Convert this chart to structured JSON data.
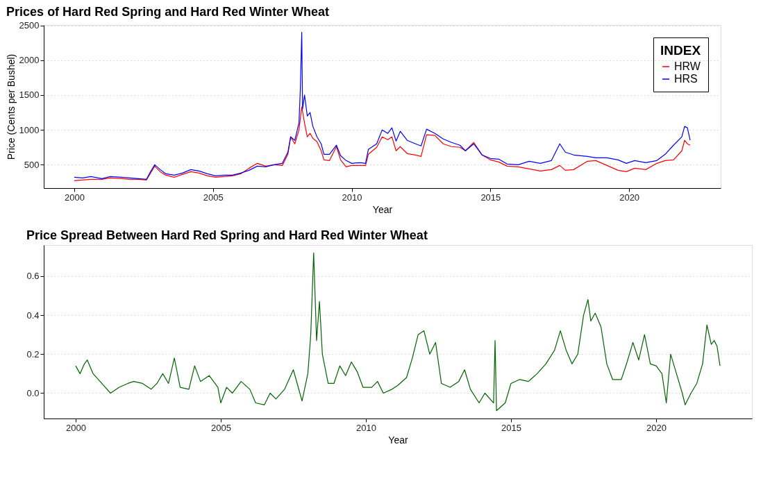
{
  "chart_data": [
    {
      "type": "line",
      "title": "Prices of Hard Red Spring and Hard Red Winter Wheat",
      "xlabel": "Year",
      "ylabel": "Price (Cents per Bushel)",
      "legend_title": "INDEX",
      "legend": "top right",
      "grid": "y",
      "xlim": [
        1998.9,
        2023.3
      ],
      "xticks": [
        2000,
        2005,
        2010,
        2015,
        2020
      ],
      "ylim": [
        165,
        2505
      ],
      "yticks": [
        500,
        1000,
        1500,
        2000,
        2500
      ],
      "series": [
        {
          "name": "HRW",
          "color": "#ff0000",
          "x": [
            2000.0,
            2000.3,
            2000.6,
            2001.0,
            2001.3,
            2001.7,
            2002.0,
            2002.3,
            2002.6,
            2002.75,
            2002.9,
            2003.1,
            2003.3,
            2003.6,
            2003.9,
            2004.2,
            2004.5,
            2004.8,
            2005.1,
            2005.4,
            2005.7,
            2006.0,
            2006.3,
            2006.6,
            2006.9,
            2007.2,
            2007.5,
            2007.7,
            2007.8,
            2007.95,
            2008.1,
            2008.2,
            2008.3,
            2008.4,
            2008.5,
            2008.6,
            2008.75,
            2008.9,
            2009.0,
            2009.2,
            2009.45,
            2009.6,
            2009.8,
            2010.0,
            2010.3,
            2010.5,
            2010.6,
            2010.9,
            2011.1,
            2011.3,
            2011.45,
            2011.6,
            2011.75,
            2012.0,
            2012.3,
            2012.5,
            2012.7,
            2013.0,
            2013.3,
            2013.6,
            2013.9,
            2014.1,
            2014.4,
            2014.7,
            2015.0,
            2015.3,
            2015.6,
            2016.0,
            2016.4,
            2016.8,
            2017.2,
            2017.5,
            2017.7,
            2018.0,
            2018.5,
            2018.8,
            2019.2,
            2019.6,
            2019.9,
            2020.2,
            2020.6,
            2021.0,
            2021.3,
            2021.6,
            2021.9,
            2022.0,
            2022.1,
            2022.2
          ],
          "values": [
            270,
            280,
            290,
            290,
            310,
            300,
            290,
            290,
            280,
            380,
            480,
            400,
            350,
            320,
            360,
            400,
            380,
            340,
            320,
            330,
            340,
            370,
            450,
            520,
            480,
            500,
            490,
            650,
            900,
            800,
            1000,
            1330,
            1100,
            900,
            950,
            880,
            830,
            700,
            570,
            560,
            760,
            570,
            470,
            490,
            490,
            490,
            650,
            750,
            900,
            860,
            900,
            700,
            760,
            660,
            640,
            620,
            930,
            920,
            800,
            760,
            750,
            700,
            820,
            640,
            570,
            540,
            480,
            470,
            440,
            410,
            430,
            490,
            420,
            430,
            550,
            560,
            490,
            420,
            400,
            450,
            430,
            520,
            560,
            570,
            700,
            850,
            800,
            780
          ]
        },
        {
          "name": "HRS",
          "color": "#0000ff",
          "x": [
            2000.0,
            2000.3,
            2000.6,
            2001.0,
            2001.3,
            2001.7,
            2002.0,
            2002.3,
            2002.6,
            2002.75,
            2002.9,
            2003.1,
            2003.3,
            2003.6,
            2003.9,
            2004.2,
            2004.5,
            2004.8,
            2005.1,
            2005.4,
            2005.7,
            2006.0,
            2006.3,
            2006.6,
            2006.9,
            2007.2,
            2007.5,
            2007.7,
            2007.8,
            2007.95,
            2008.1,
            2008.15,
            2008.2,
            2008.23,
            2008.3,
            2008.4,
            2008.5,
            2008.6,
            2008.75,
            2008.9,
            2009.0,
            2009.2,
            2009.45,
            2009.6,
            2009.8,
            2010.0,
            2010.3,
            2010.5,
            2010.6,
            2010.9,
            2011.1,
            2011.3,
            2011.45,
            2011.6,
            2011.75,
            2012.0,
            2012.3,
            2012.5,
            2012.7,
            2013.0,
            2013.3,
            2013.6,
            2013.9,
            2014.1,
            2014.4,
            2014.7,
            2015.0,
            2015.3,
            2015.6,
            2016.0,
            2016.4,
            2016.8,
            2017.2,
            2017.5,
            2017.7,
            2018.0,
            2018.5,
            2018.8,
            2019.2,
            2019.6,
            2019.9,
            2020.2,
            2020.6,
            2021.0,
            2021.3,
            2021.6,
            2021.9,
            2022.0,
            2022.1,
            2022.2
          ],
          "values": [
            320,
            310,
            330,
            300,
            330,
            320,
            310,
            300,
            290,
            400,
            500,
            430,
            370,
            350,
            380,
            430,
            410,
            370,
            340,
            350,
            350,
            380,
            420,
            480,
            470,
            500,
            520,
            680,
            900,
            850,
            1100,
            1600,
            2400,
            1300,
            1500,
            1200,
            1250,
            1050,
            900,
            800,
            650,
            650,
            780,
            630,
            560,
            520,
            530,
            520,
            720,
            800,
            1000,
            950,
            1030,
            840,
            980,
            850,
            800,
            770,
            1010,
            950,
            870,
            820,
            780,
            700,
            800,
            640,
            590,
            580,
            510,
            500,
            550,
            520,
            560,
            800,
            680,
            640,
            620,
            600,
            600,
            570,
            520,
            560,
            530,
            560,
            650,
            780,
            900,
            1050,
            1030,
            850
          ]
        }
      ]
    },
    {
      "type": "line",
      "title": "Price Spread Between Hard Red Spring and Hard Red Winter Wheat",
      "xlabel": "Year",
      "grid": "y",
      "xlim": [
        1998.9,
        2023.3
      ],
      "xticks": [
        2000,
        2005,
        2010,
        2015,
        2020
      ],
      "ylim": [
        -0.13,
        0.76
      ],
      "yticks": [
        {
          "value": 0,
          "label": "0.0"
        },
        0.2,
        0.4,
        0.6
      ],
      "series": [
        {
          "color": "#006400",
          "x": [
            2000.0,
            2000.15,
            2000.3,
            2000.4,
            2000.6,
            2000.9,
            2001.2,
            2001.5,
            2001.8,
            2002.0,
            2002.3,
            2002.6,
            2002.8,
            2003.0,
            2003.2,
            2003.4,
            2003.6,
            2003.9,
            2004.1,
            2004.3,
            2004.6,
            2004.9,
            2005.0,
            2005.2,
            2005.4,
            2005.7,
            2006.0,
            2006.2,
            2006.5,
            2006.7,
            2006.9,
            2007.2,
            2007.5,
            2007.8,
            2008.0,
            2008.1,
            2008.2,
            2008.3,
            2008.4,
            2008.5,
            2008.7,
            2008.9,
            2009.1,
            2009.3,
            2009.5,
            2009.7,
            2009.9,
            2010.2,
            2010.4,
            2010.6,
            2010.9,
            2011.1,
            2011.4,
            2011.6,
            2011.8,
            2012.0,
            2012.2,
            2012.4,
            2012.6,
            2012.9,
            2013.2,
            2013.4,
            2013.6,
            2013.9,
            2014.1,
            2014.4,
            2014.45,
            2014.5,
            2014.8,
            2015.0,
            2015.3,
            2015.6,
            2015.9,
            2016.2,
            2016.5,
            2016.7,
            2016.9,
            2017.1,
            2017.3,
            2017.5,
            2017.65,
            2017.75,
            2017.9,
            2018.1,
            2018.3,
            2018.5,
            2018.8,
            2019.0,
            2019.2,
            2019.4,
            2019.6,
            2019.8,
            2020.0,
            2020.2,
            2020.35,
            2020.5,
            2020.7,
            2020.9,
            2021.0,
            2021.2,
            2021.4,
            2021.6,
            2021.75,
            2021.9,
            2022.0,
            2022.1,
            2022.2
          ],
          "values": [
            0.14,
            0.1,
            0.15,
            0.17,
            0.1,
            0.05,
            0.0,
            0.03,
            0.05,
            0.06,
            0.05,
            0.02,
            0.05,
            0.1,
            0.05,
            0.18,
            0.03,
            0.02,
            0.14,
            0.06,
            0.09,
            0.03,
            -0.05,
            0.03,
            0.0,
            0.06,
            0.02,
            -0.05,
            -0.06,
            0.0,
            -0.03,
            0.02,
            0.12,
            -0.04,
            0.1,
            0.3,
            0.72,
            0.27,
            0.47,
            0.2,
            0.05,
            0.05,
            0.14,
            0.09,
            0.16,
            0.11,
            0.03,
            0.03,
            0.06,
            0.0,
            0.02,
            0.04,
            0.08,
            0.18,
            0.3,
            0.32,
            0.2,
            0.26,
            0.05,
            0.03,
            0.06,
            0.12,
            0.02,
            -0.05,
            0.0,
            -0.05,
            0.27,
            -0.09,
            -0.05,
            0.05,
            0.07,
            0.06,
            0.1,
            0.15,
            0.22,
            0.32,
            0.22,
            0.15,
            0.2,
            0.4,
            0.48,
            0.37,
            0.41,
            0.34,
            0.15,
            0.07,
            0.07,
            0.16,
            0.26,
            0.17,
            0.3,
            0.15,
            0.14,
            0.1,
            -0.05,
            0.2,
            0.1,
            0.0,
            -0.06,
            0.0,
            0.05,
            0.15,
            0.35,
            0.25,
            0.27,
            0.24,
            0.14
          ]
        }
      ]
    }
  ]
}
